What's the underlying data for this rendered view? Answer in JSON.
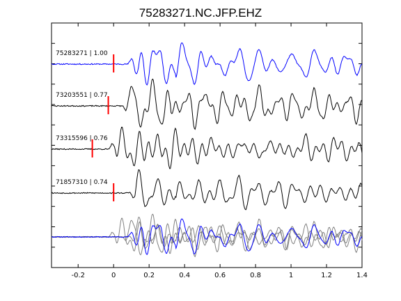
{
  "chart_data": {
    "type": "line",
    "title": "75283271.NC.JFP.EHZ",
    "xlabel": "",
    "ylabel": "",
    "xlim": [
      -0.35,
      1.4
    ],
    "x_ticks": [
      -0.2,
      0,
      0.2,
      0.4,
      0.6,
      0.8,
      1,
      1.2,
      1.4
    ],
    "x_tick_labels": [
      "-0.2",
      "0",
      "0.2",
      "0.4",
      "0.6",
      "0.8",
      "1",
      "1.2",
      "1.4"
    ],
    "grid": false,
    "colors": {
      "primary": "#0000ff",
      "neighbor": "#000000",
      "overlay": "#808080",
      "pick": "#ff0000"
    },
    "traces": [
      {
        "label": "75283271 | 1.00",
        "pick_time": 0.0,
        "color": "#0000ff",
        "seed": 11
      },
      {
        "label": "73203551 | 0.77",
        "pick_time": -0.03,
        "color": "#000000",
        "seed": 23
      },
      {
        "label": "73315596 | 0.76",
        "pick_time": -0.12,
        "color": "#000000",
        "seed": 37
      },
      {
        "label": "71857310 | 0.74",
        "pick_time": 0.0,
        "color": "#000000",
        "seed": 53
      }
    ],
    "overlay": {
      "type": "stack",
      "primary_color": "#0000ff",
      "secondary_color": "#808080"
    }
  }
}
